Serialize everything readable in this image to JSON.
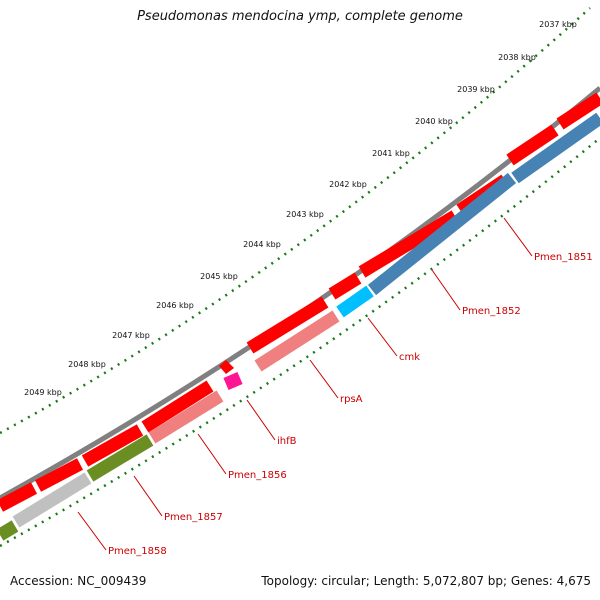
{
  "title": "Pseudomonas mendocina ymp, complete genome",
  "footer": {
    "accession": "Accession: NC_009439",
    "summary": "Topology: circular; Length: 5,072,807 bp; Genes: 4,675"
  },
  "colors": {
    "backbone": "#888888",
    "cds": "#ff0000",
    "ticks": "#1a7a1a",
    "label": "#cc0000"
  },
  "scale_labels": [
    "2037 kbp",
    "2038 kbp",
    "2039 kbp",
    "2040 kbp",
    "2041 kbp",
    "2042 kbp",
    "2043 kbp",
    "2044 kbp",
    "2045 kbp",
    "2046 kbp",
    "2047 kbp",
    "2048 kbp",
    "2049 kbp"
  ],
  "genes": [
    {
      "name": "Pmen_1851",
      "color": "#4682b4"
    },
    {
      "name": "Pmen_1852",
      "color": "#4682b4"
    },
    {
      "name": "cmk",
      "color": "#00bfff"
    },
    {
      "name": "rpsA",
      "color": "#f08080"
    },
    {
      "name": "ihfB",
      "color": "#ff1493"
    },
    {
      "name": "Pmen_1856",
      "color": "#f08080"
    },
    {
      "name": "Pmen_1857",
      "color": "#6b8e23"
    },
    {
      "name": "Pmen_1858",
      "color": "#c0c0c0"
    }
  ]
}
